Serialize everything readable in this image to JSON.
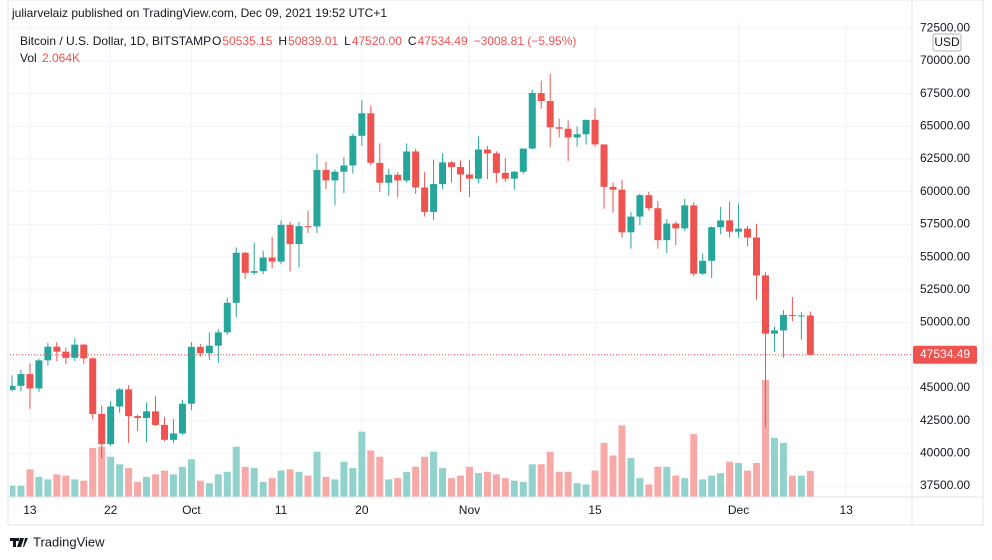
{
  "header": {
    "published": "juliarvelaiz published on TradingView.com, Dec 09, 2021 19:52 UTC+1",
    "symbol": "Bitcoin / U.S. Dollar, 1D, BITSTAMP",
    "ohlc_names": [
      "O",
      "H",
      "L",
      "C"
    ],
    "ohlc_labels": [
      "50535.15",
      "50839.01",
      "47520.00",
      "47534.49"
    ],
    "change_label": "−3008.81 (−5.95%)",
    "volume_name": "Vol",
    "volume_label": "2.064K",
    "currency": "USD"
  },
  "footer": {
    "brand": "TradingView"
  },
  "chart_data": {
    "type": "candlestick",
    "x": [
      "Sep 11",
      "Sep 12",
      "Sep 13",
      "Sep 14",
      "Sep 15",
      "Sep 16",
      "Sep 17",
      "Sep 18",
      "Sep 19",
      "Sep 20",
      "Sep 21",
      "Sep 22",
      "Sep 23",
      "Sep 24",
      "Sep 25",
      "Sep 26",
      "Sep 27",
      "Sep 28",
      "Sep 29",
      "Sep 30",
      "Oct 1",
      "Oct 2",
      "Oct 3",
      "Oct 4",
      "Oct 5",
      "Oct 6",
      "Oct 7",
      "Oct 8",
      "Oct 9",
      "Oct 10",
      "Oct 11",
      "Oct 12",
      "Oct 13",
      "Oct 14",
      "Oct 15",
      "Oct 16",
      "Oct 17",
      "Oct 18",
      "Oct 19",
      "Oct 20",
      "Oct 21",
      "Oct 22",
      "Oct 23",
      "Oct 24",
      "Oct 25",
      "Oct 26",
      "Oct 27",
      "Oct 28",
      "Oct 29",
      "Oct 30",
      "Oct 31",
      "Nov 1",
      "Nov 2",
      "Nov 3",
      "Nov 4",
      "Nov 5",
      "Nov 6",
      "Nov 7",
      "Nov 8",
      "Nov 9",
      "Nov 10",
      "Nov 11",
      "Nov 12",
      "Nov 13",
      "Nov 14",
      "Nov 15",
      "Nov 16",
      "Nov 17",
      "Nov 18",
      "Nov 19",
      "Nov 20",
      "Nov 21",
      "Nov 22",
      "Nov 23",
      "Nov 24",
      "Nov 25",
      "Nov 26",
      "Nov 27",
      "Nov 28",
      "Nov 29",
      "Nov 30",
      "Dec 1",
      "Dec 2",
      "Dec 3",
      "Dec 4",
      "Dec 5",
      "Dec 6",
      "Dec 7",
      "Dec 8",
      "Dec 9"
    ],
    "open": [
      44850,
      45160,
      46060,
      44960,
      47110,
      48150,
      47770,
      47300,
      48310,
      47260,
      43010,
      40700,
      43580,
      44890,
      42840,
      42700,
      43210,
      42170,
      41030,
      41520,
      43790,
      48140,
      47660,
      48230,
      49250,
      51510,
      55340,
      53800,
      53930,
      54970,
      54660,
      57470,
      56000,
      57370,
      57350,
      61670,
      60870,
      61530,
      62010,
      64280,
      66000,
      62210,
      60690,
      61300,
      60860,
      63080,
      60330,
      58460,
      60590,
      62250,
      61890,
      61320,
      61000,
      63230,
      62940,
      61440,
      61000,
      61530,
      63300,
      67550,
      66940,
      64930,
      64820,
      64150,
      64400,
      65500,
      63620,
      60370,
      60160,
      56900,
      58100,
      59740,
      58740,
      56300,
      57570,
      57200,
      58960,
      53730,
      54720,
      57290,
      57810,
      56950,
      57180,
      56500,
      53600,
      49150,
      49400,
      50580,
      50540,
      50535.15
    ],
    "high": [
      45970,
      46400,
      46880,
      47250,
      48450,
      48500,
      48100,
      48800,
      48370,
      47350,
      43650,
      44000,
      45000,
      45200,
      42950,
      43900,
      44350,
      42770,
      42600,
      44100,
      48500,
      48350,
      49250,
      49500,
      51900,
      55750,
      55400,
      56100,
      55500,
      56550,
      57800,
      57700,
      57700,
      58550,
      62900,
      62300,
      61700,
      62650,
      64450,
      67000,
      66600,
      63700,
      61750,
      61500,
      63700,
      63300,
      61500,
      62450,
      62950,
      62350,
      62400,
      62400,
      64250,
      63500,
      63100,
      62600,
      61600,
      63300,
      67800,
      68500,
      69000,
      65600,
      65450,
      65000,
      65500,
      66400,
      63620,
      60700,
      60900,
      58450,
      59850,
      60000,
      59300,
      57900,
      57750,
      59450,
      59200,
      55300,
      57350,
      58850,
      59250,
      59100,
      57400,
      57550,
      53850,
      49700,
      50950,
      51950,
      50800,
      50839.01
    ],
    "low": [
      44750,
      44750,
      43400,
      44700,
      46700,
      47050,
      46800,
      47050,
      46850,
      42600,
      39600,
      40550,
      43100,
      40800,
      41700,
      40850,
      42100,
      40900,
      40800,
      41400,
      43300,
      47400,
      47150,
      46900,
      49050,
      50400,
      53350,
      53650,
      53700,
      54150,
      54450,
      53900,
      54200,
      56850,
      56850,
      60200,
      58950,
      59900,
      61400,
      63500,
      62000,
      60000,
      59700,
      59550,
      60700,
      59850,
      58100,
      57850,
      60200,
      60700,
      60000,
      59600,
      60650,
      60950,
      60700,
      60750,
      60150,
      61350,
      63250,
      66350,
      63400,
      64150,
      62350,
      63450,
      63600,
      63450,
      58700,
      58400,
      56500,
      55650,
      57450,
      58550,
      55650,
      55300,
      55900,
      57000,
      53550,
      53650,
      53400,
      56750,
      56500,
      56500,
      55850,
      51750,
      42000,
      47750,
      47300,
      50100,
      48700,
      47520
    ],
    "close": [
      45160,
      46060,
      44960,
      47110,
      48150,
      47770,
      47300,
      48310,
      47260,
      43010,
      40700,
      43580,
      44890,
      42840,
      42700,
      43210,
      42170,
      41030,
      41520,
      43790,
      48140,
      47660,
      48230,
      49250,
      51510,
      55340,
      53800,
      53930,
      54970,
      54660,
      57470,
      56000,
      57370,
      57350,
      61670,
      60870,
      61530,
      62010,
      64280,
      66000,
      62210,
      60690,
      61300,
      60860,
      63080,
      60330,
      58460,
      60590,
      62250,
      61890,
      61320,
      61000,
      63230,
      62940,
      61440,
      61000,
      61530,
      63300,
      67550,
      66940,
      64930,
      64820,
      64150,
      64400,
      65500,
      63620,
      60370,
      60160,
      56900,
      58100,
      59740,
      58740,
      56300,
      57570,
      57200,
      58960,
      53730,
      54720,
      57290,
      57810,
      56950,
      57180,
      56500,
      53600,
      49150,
      49400,
      50580,
      50540,
      50540,
      47534.49
    ],
    "volume": [
      900,
      900,
      2200,
      1600,
      1400,
      1800,
      1700,
      1400,
      1300,
      3900,
      4000,
      3200,
      2600,
      2300,
      1200,
      1600,
      1800,
      2100,
      1800,
      2400,
      3000,
      1300,
      1100,
      1800,
      2000,
      4000,
      2400,
      2300,
      1200,
      1500,
      2100,
      2200,
      2000,
      1700,
      3600,
      1600,
      1400,
      2800,
      2300,
      5200,
      3700,
      3200,
      1400,
      1500,
      2000,
      2400,
      3200,
      3600,
      2300,
      1500,
      1700,
      2400,
      1900,
      2000,
      1800,
      1500,
      1300,
      1200,
      2600,
      2600,
      3600,
      2000,
      2000,
      1100,
      1000,
      2100,
      4300,
      3300,
      5700,
      3100,
      1500,
      1000,
      2400,
      2400,
      1700,
      1500,
      5000,
      1400,
      1700,
      1900,
      2800,
      2700,
      2100,
      2700,
      9300,
      4700,
      4300,
      1700,
      1700,
      2064
    ],
    "up_color": "#26a69a",
    "down_color": "#ef5350",
    "up_volume_color": "#92d2cc",
    "down_volume_color": "#f7a9a7",
    "xlim": [
      "Sep 11",
      "Dec 20"
    ],
    "xticks": [
      {
        "value": "Sep 13",
        "label": "13"
      },
      {
        "value": "Sep 22",
        "label": "22"
      },
      {
        "value": "Oct 1",
        "label": "Oct"
      },
      {
        "value": "Oct 11",
        "label": "11"
      },
      {
        "value": "Oct 20",
        "label": "20"
      },
      {
        "value": "Nov 1",
        "label": "Nov"
      },
      {
        "value": "Nov 15",
        "label": "15"
      },
      {
        "value": "Dec 1",
        "label": "Dec"
      },
      {
        "value": "Dec 13",
        "label": "13"
      }
    ],
    "ylim": [
      37500,
      72500
    ],
    "yticks": [
      {
        "value": 37500,
        "label": "37500.00"
      },
      {
        "value": 40000,
        "label": "40000.00"
      },
      {
        "value": 42500,
        "label": "42500.00"
      },
      {
        "value": 45000,
        "label": "45000.00"
      },
      {
        "value": 47500,
        "label": "47500.00"
      },
      {
        "value": 50000,
        "label": "50000.00"
      },
      {
        "value": 52500,
        "label": "52500.00"
      },
      {
        "value": 55000,
        "label": "55000.00"
      },
      {
        "value": 57500,
        "label": "57500.00"
      },
      {
        "value": 60000,
        "label": "60000.00"
      },
      {
        "value": 62500,
        "label": "62500.00"
      },
      {
        "value": 65000,
        "label": "65000.00"
      },
      {
        "value": 67500,
        "label": "67500.00"
      },
      {
        "value": 70000,
        "label": "70000.00"
      },
      {
        "value": 72500,
        "label": "72500.00"
      }
    ],
    "last_price_label": "47534.49",
    "grid": true
  }
}
